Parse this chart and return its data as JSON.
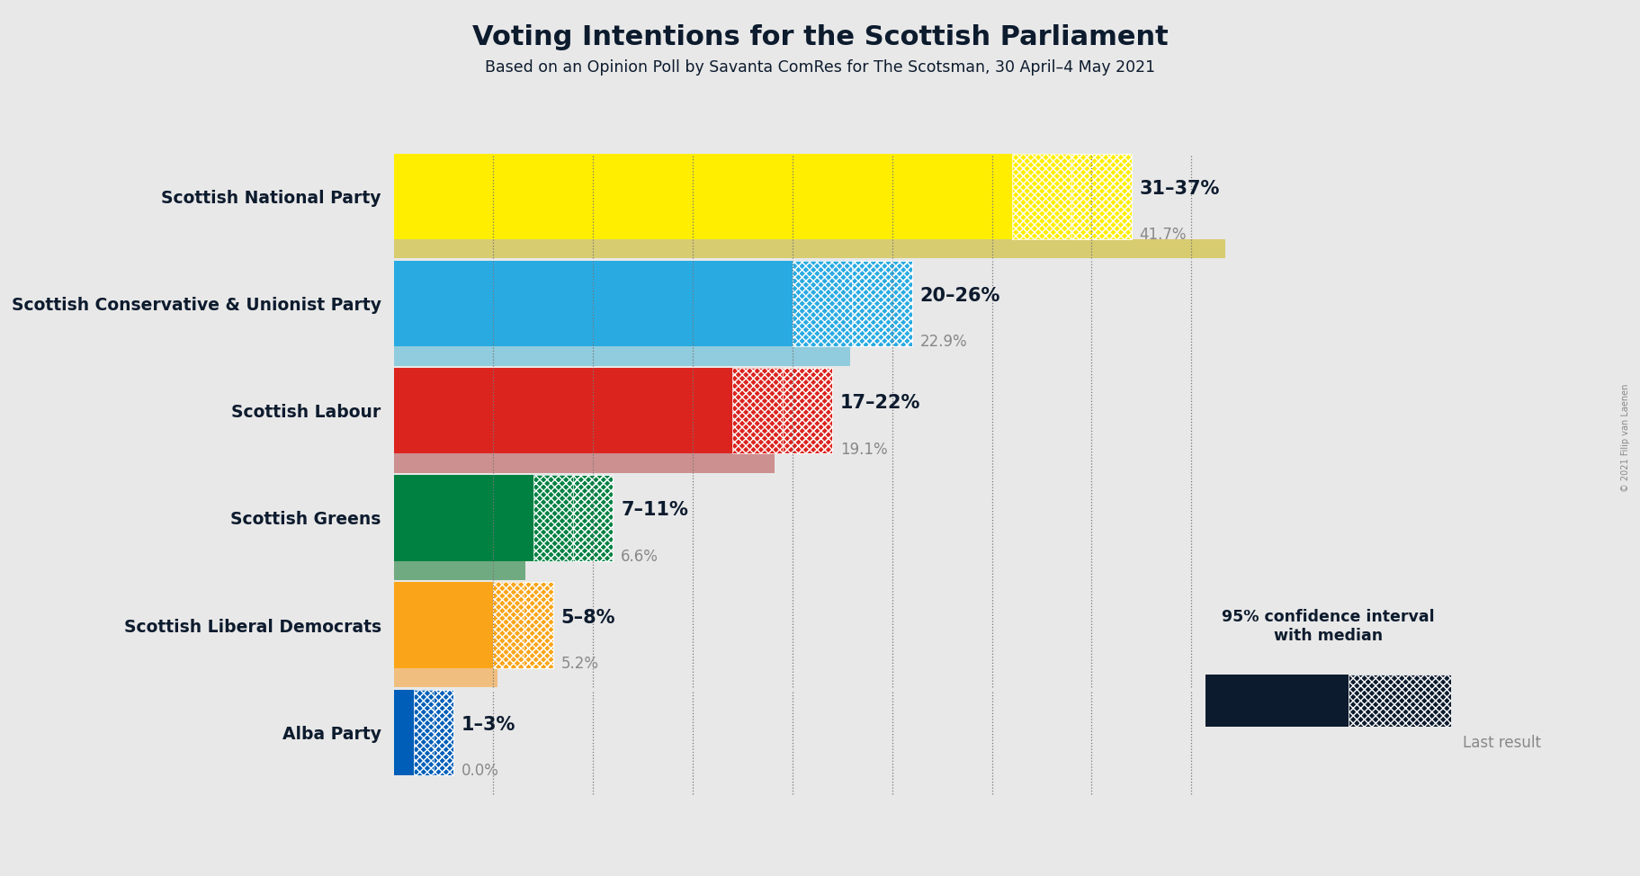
{
  "title": "Voting Intentions for the Scottish Parliament",
  "subtitle": "Based on an Opinion Poll by Savanta ComRes for The Scotsman, 30 April–4 May 2021",
  "copyright": "© 2021 Filip van Laenen",
  "background_color": "#e8e8e8",
  "parties": [
    {
      "name": "Scottish National Party",
      "ci_low": 31,
      "ci_high": 37,
      "last_result": 41.7,
      "color": "#FFEE00",
      "last_color": "#D8CC70",
      "label": "31–37%",
      "last_label": "41.7%"
    },
    {
      "name": "Scottish Conservative & Unionist Party",
      "ci_low": 20,
      "ci_high": 26,
      "last_result": 22.9,
      "color": "#29ABE2",
      "last_color": "#90CCDD",
      "label": "20–26%",
      "last_label": "22.9%"
    },
    {
      "name": "Scottish Labour",
      "ci_low": 17,
      "ci_high": 22,
      "last_result": 19.1,
      "color": "#DC241f",
      "last_color": "#CC9090",
      "label": "17–22%",
      "last_label": "19.1%"
    },
    {
      "name": "Scottish Greens",
      "ci_low": 7,
      "ci_high": 11,
      "last_result": 6.6,
      "color": "#008142",
      "last_color": "#70AA80",
      "label": "7–11%",
      "last_label": "6.6%"
    },
    {
      "name": "Scottish Liberal Democrats",
      "ci_low": 5,
      "ci_high": 8,
      "last_result": 5.2,
      "color": "#FAA519",
      "last_color": "#F0BF80",
      "label": "5–8%",
      "last_label": "5.2%"
    },
    {
      "name": "Alba Party",
      "ci_low": 1,
      "ci_high": 3,
      "last_result": 0.0,
      "color": "#005EB8",
      "last_color": "#7799BB",
      "label": "1–3%",
      "last_label": "0.0%"
    }
  ],
  "xmax": 44,
  "bar_height": 0.4,
  "last_bar_height": 0.18,
  "dashed_line_positions": [
    5,
    10,
    15,
    20,
    25,
    30,
    35,
    40
  ],
  "text_color": "#0d1b2e",
  "gray_text": "#888888",
  "legend_dark": "#0d1b2e"
}
